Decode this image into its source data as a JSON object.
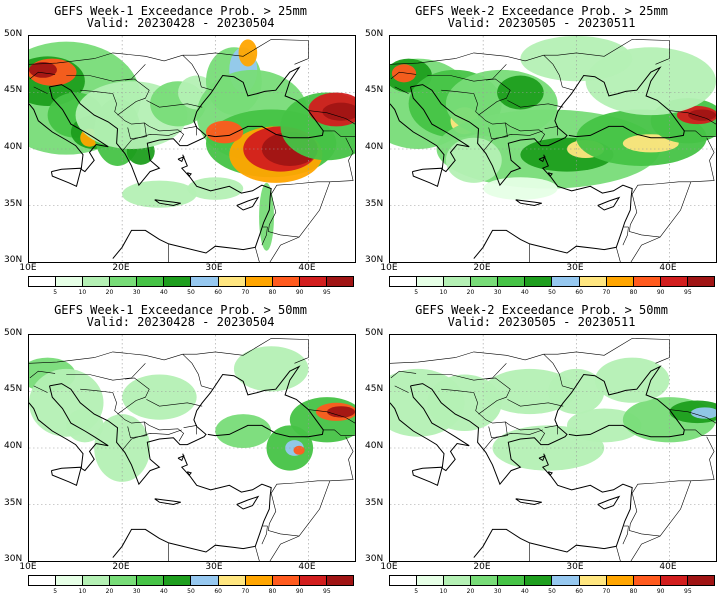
{
  "panels": [
    {
      "title": "GEFS Week-1 Exceedance Prob. > 25mm",
      "valid": "Valid: 20230428 - 20230504"
    },
    {
      "title": "GEFS Week-2 Exceedance Prob. > 25mm",
      "valid": "Valid: 20230505 - 20230511"
    },
    {
      "title": "GEFS Week-1 Exceedance Prob. > 50mm",
      "valid": "Valid: 20230428 - 20230504"
    },
    {
      "title": "GEFS Week-2 Exceedance Prob. > 50mm",
      "valid": "Valid: 20230505 - 20230511"
    }
  ],
  "lat_labels": [
    "50N",
    "45N",
    "40N",
    "35N",
    "30N"
  ],
  "lon_labels": [
    "10E",
    "20E",
    "30E",
    "40E"
  ],
  "colorbar": {
    "labels": [
      "5",
      "10",
      "20",
      "30",
      "40",
      "50",
      "60",
      "70",
      "80",
      "90",
      "95"
    ],
    "colors": [
      "#ffffff",
      "#e6ffe6",
      "#b4f0b4",
      "#78dc78",
      "#46c346",
      "#1e9e1e",
      "#96c8f0",
      "#ffe680",
      "#ffa500",
      "#ff5a1e",
      "#d21e1e",
      "#a01414"
    ]
  },
  "colors": {
    "coastline": "#000000",
    "grid": "#999999"
  }
}
